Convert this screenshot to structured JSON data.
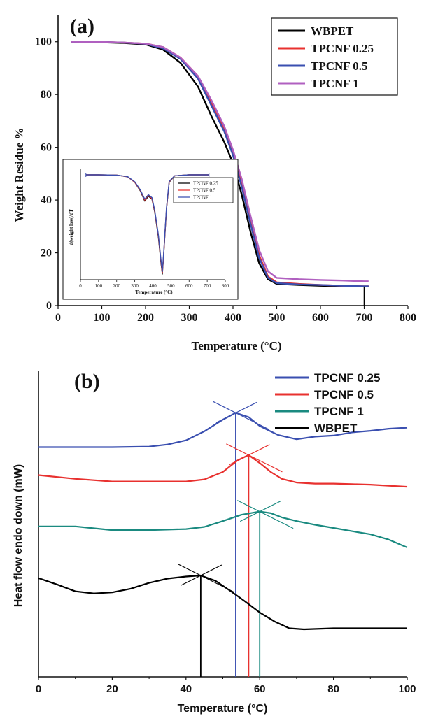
{
  "chart_data": [
    {
      "panel_label": "(a)",
      "type": "line",
      "title": "",
      "xlabel": "Temperature (°C)",
      "ylabel": "Weight Residue %",
      "xlim": [
        0,
        800
      ],
      "ylim": [
        0,
        110
      ],
      "x_ticks": [
        0,
        100,
        200,
        300,
        400,
        500,
        600,
        700,
        800
      ],
      "y_ticks": [
        0,
        20,
        40,
        60,
        80,
        100
      ],
      "legend_position": "top-right",
      "series": [
        {
          "name": "WBPET",
          "color": "#000000",
          "x": [
            30,
            100,
            150,
            200,
            240,
            280,
            320,
            350,
            380,
            400,
            420,
            440,
            460,
            480,
            500,
            550,
            600,
            650,
            700,
            710
          ],
          "y": [
            100,
            99.8,
            99.5,
            99,
            97,
            92,
            83,
            72,
            62,
            54,
            42,
            28,
            16,
            10,
            8.2,
            7.8,
            7.5,
            7.3,
            7.2,
            7.2
          ]
        },
        {
          "name": "TPCNF 0.25",
          "color": "#e8312f",
          "x": [
            30,
            100,
            150,
            200,
            240,
            280,
            320,
            350,
            380,
            400,
            420,
            440,
            460,
            480,
            500,
            550,
            600,
            650,
            700,
            710
          ],
          "y": [
            100,
            99.9,
            99.7,
            99.3,
            98,
            94,
            87,
            77,
            67,
            58,
            46,
            32,
            19,
            11,
            8.8,
            8.2,
            7.8,
            7.5,
            7.3,
            7.3
          ]
        },
        {
          "name": "TPCNF 0.5",
          "color": "#3a4fb0",
          "x": [
            30,
            100,
            150,
            200,
            240,
            280,
            320,
            350,
            380,
            400,
            420,
            440,
            460,
            480,
            500,
            550,
            600,
            650,
            700,
            710
          ],
          "y": [
            100,
            99.9,
            99.7,
            99.2,
            97.5,
            93.5,
            86,
            76,
            66,
            57,
            45,
            31,
            18,
            10.5,
            8.5,
            8,
            7.8,
            7.5,
            7.3,
            7.3
          ]
        },
        {
          "name": "TPCNF 1",
          "color": "#b060c0",
          "x": [
            30,
            100,
            150,
            200,
            240,
            280,
            320,
            350,
            380,
            400,
            420,
            440,
            460,
            480,
            500,
            550,
            600,
            650,
            700,
            710
          ],
          "y": [
            100,
            99.9,
            99.7,
            99.3,
            98,
            94,
            87,
            78,
            68,
            59,
            48,
            34,
            21,
            13,
            10.5,
            10,
            9.7,
            9.5,
            9.2,
            9.2
          ]
        }
      ],
      "inset": {
        "xlabel": "Temperature (°C)",
        "ylabel": "d(weight loss)/dT",
        "xlim": [
          0,
          800
        ],
        "x_ticks": [
          0,
          100,
          200,
          300,
          400,
          500,
          600,
          700,
          800
        ],
        "series": [
          {
            "name": "TPCNF 0.25",
            "color": "#000000",
            "x": [
              30,
              100,
              200,
              260,
              300,
              330,
              355,
              375,
              395,
              410,
              430,
              445,
              452,
              460,
              475,
              490,
              520,
              600,
              710
            ],
            "y": [
              0,
              0,
              -0.05,
              -0.4,
              -1.5,
              -3.2,
              -5.3,
              -4.3,
              -4.9,
              -7.5,
              -12.5,
              -17.8,
              -20,
              -16,
              -7,
              -1.5,
              -0.2,
              0,
              0
            ]
          },
          {
            "name": "TPCNF 0.5",
            "color": "#e8312f",
            "x": [
              30,
              100,
              200,
              260,
              300,
              330,
              355,
              375,
              395,
              410,
              430,
              445,
              452,
              460,
              475,
              490,
              520,
              600,
              710
            ],
            "y": [
              0,
              0,
              -0.05,
              -0.4,
              -1.5,
              -3.1,
              -5.1,
              -4.1,
              -4.8,
              -7.3,
              -12.2,
              -17.5,
              -19.8,
              -15.8,
              -6.8,
              -1.4,
              -0.2,
              0,
              0
            ]
          },
          {
            "name": "TPCNF 1",
            "color": "#3a4fb0",
            "x": [
              30,
              100,
              200,
              260,
              300,
              330,
              355,
              375,
              395,
              410,
              430,
              445,
              452,
              460,
              475,
              490,
              520,
              600,
              710
            ],
            "y": [
              0,
              0,
              -0.05,
              -0.35,
              -1.4,
              -3.0,
              -4.9,
              -4.0,
              -4.6,
              -7.1,
              -12.0,
              -17.2,
              -19.5,
              -15.5,
              -6.6,
              -1.3,
              -0.2,
              0,
              0
            ]
          }
        ]
      }
    },
    {
      "panel_label": "(b)",
      "type": "line",
      "title": "",
      "xlabel": "Temperature (°C)",
      "ylabel": "Heat flow endo down (mW)",
      "xlim": [
        0,
        100
      ],
      "x_ticks": [
        0,
        20,
        40,
        60,
        80,
        100
      ],
      "legend_position": "top-right",
      "series": [
        {
          "name": "TPCNF 0.25",
          "color": "#3a4fb0",
          "tangent_x": 53.5,
          "x": [
            0,
            10,
            20,
            30,
            35,
            40,
            45,
            50,
            53.5,
            57,
            60,
            65,
            70,
            75,
            80,
            85,
            90,
            95,
            100
          ],
          "y": [
            0.75,
            0.75,
            0.75,
            0.76,
            0.8,
            0.88,
            1.05,
            1.27,
            1.4,
            1.32,
            1.15,
            0.98,
            0.9,
            0.95,
            0.97,
            1.03,
            1.06,
            1.1,
            1.12
          ]
        },
        {
          "name": "TPCNF 0.5",
          "color": "#e8312f",
          "tangent_x": 57,
          "x": [
            0,
            10,
            20,
            30,
            40,
            45,
            50,
            54,
            57,
            60,
            63,
            66,
            70,
            75,
            80,
            85,
            90,
            95,
            100
          ],
          "y": [
            0.22,
            0.15,
            0.1,
            0.1,
            0.1,
            0.14,
            0.28,
            0.5,
            0.6,
            0.45,
            0.28,
            0.15,
            0.08,
            0.06,
            0.06,
            0.05,
            0.04,
            0.02,
            0.0
          ]
        },
        {
          "name": "TPCNF 1",
          "color": "#1a8a80",
          "tangent_x": 60,
          "x": [
            0,
            10,
            20,
            30,
            40,
            45,
            50,
            55,
            60,
            63,
            66,
            70,
            75,
            80,
            85,
            90,
            95,
            100
          ],
          "y": [
            -0.75,
            -0.75,
            -0.82,
            -0.82,
            -0.8,
            -0.76,
            -0.65,
            -0.53,
            -0.47,
            -0.5,
            -0.58,
            -0.65,
            -0.72,
            -0.78,
            -0.84,
            -0.9,
            -1.0,
            -1.15
          ]
        },
        {
          "name": "WBPET",
          "color": "#000000",
          "tangent_x": 44,
          "x": [
            0,
            5,
            10,
            15,
            20,
            25,
            30,
            35,
            40,
            44,
            48,
            52,
            56,
            60,
            64,
            68,
            72,
            80,
            90,
            100
          ],
          "y": [
            -1.73,
            -1.85,
            -1.98,
            -2.02,
            -2.0,
            -1.93,
            -1.82,
            -1.74,
            -1.7,
            -1.68,
            -1.78,
            -1.97,
            -2.17,
            -2.38,
            -2.55,
            -2.68,
            -2.7,
            -2.68,
            -2.68,
            -2.68
          ]
        }
      ]
    }
  ]
}
